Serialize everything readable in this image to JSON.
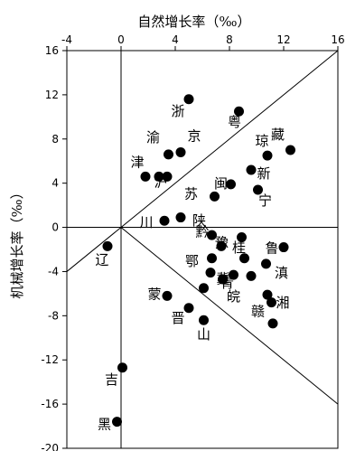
{
  "chart_data": {
    "type": "scatter",
    "xlabel": "自然增长率（‰）",
    "ylabel": "机械增长率（‰）",
    "xlim": [
      -4,
      16
    ],
    "ylim": [
      -20,
      16
    ],
    "xticks": [
      "-4",
      "0",
      "4",
      "8",
      "12",
      "16"
    ],
    "yticks": [
      "16",
      "12",
      "8",
      "4",
      "0",
      "-4",
      "-8",
      "-12",
      "-16",
      "-20"
    ],
    "x_axis_position": "top",
    "reference_lines": [
      {
        "kind": "axis",
        "desc": "x = 0"
      },
      {
        "kind": "axis",
        "desc": "y = 0"
      },
      {
        "kind": "diagonal",
        "from": [
          -4,
          -4
        ],
        "to": [
          16,
          16
        ]
      },
      {
        "kind": "diagonal",
        "from": [
          0,
          0
        ],
        "to": [
          16,
          -16
        ]
      }
    ],
    "points": [
      {
        "label": "浙",
        "x": 5.0,
        "y": 11.6
      },
      {
        "label": "粤",
        "x": 8.7,
        "y": 10.5
      },
      {
        "label": "藏",
        "x": 12.5,
        "y": 7.0
      },
      {
        "label": "渝",
        "x": 3.5,
        "y": 6.6
      },
      {
        "label": "京",
        "x": 4.4,
        "y": 6.8
      },
      {
        "label": "琼",
        "x": 10.8,
        "y": 6.5
      },
      {
        "label": "新",
        "x": 9.6,
        "y": 5.2
      },
      {
        "label": "津",
        "x": 1.8,
        "y": 4.6
      },
      {
        "label": "沪",
        "x": 2.8,
        "y": 4.6
      },
      {
        "label": "",
        "x": 3.4,
        "y": 4.6
      },
      {
        "label": "闽",
        "x": 8.1,
        "y": 3.9
      },
      {
        "label": "宁",
        "x": 10.1,
        "y": 3.4
      },
      {
        "label": "苏",
        "x": 6.9,
        "y": 2.8
      },
      {
        "label": "黔",
        "x": 4.4,
        "y": 0.9
      },
      {
        "label": "川",
        "x": 3.2,
        "y": 0.6
      },
      {
        "label": "陕",
        "x": 6.7,
        "y": -0.7
      },
      {
        "label": "豫",
        "x": 8.9,
        "y": -0.9
      },
      {
        "label": "鲁",
        "x": 12.0,
        "y": -1.8
      },
      {
        "label": "",
        "x": 7.4,
        "y": -1.7
      },
      {
        "label": "鄂",
        "x": 6.7,
        "y": -2.8
      },
      {
        "label": "桂",
        "x": 9.1,
        "y": -2.8
      },
      {
        "label": "滇",
        "x": 10.7,
        "y": -3.3
      },
      {
        "label": "辽",
        "x": -1.0,
        "y": -1.7
      },
      {
        "label": "冀",
        "x": 6.6,
        "y": -4.1
      },
      {
        "label": "青",
        "x": 8.3,
        "y": -4.3
      },
      {
        "label": "",
        "x": 9.6,
        "y": -4.4
      },
      {
        "label": "皖",
        "x": 7.5,
        "y": -4.7
      },
      {
        "label": "",
        "x": 6.1,
        "y": -5.5
      },
      {
        "label": "湘",
        "x": 10.8,
        "y": -6.1
      },
      {
        "label": "赣",
        "x": 11.1,
        "y": -6.8
      },
      {
        "label": "蒙",
        "x": 3.4,
        "y": -6.2
      },
      {
        "label": "晋",
        "x": 5.0,
        "y": -7.3
      },
      {
        "label": "山",
        "x": 6.1,
        "y": -8.4
      },
      {
        "label": "",
        "x": 11.2,
        "y": -8.7
      },
      {
        "label": "吉",
        "x": 0.1,
        "y": -12.7
      },
      {
        "label": "黑",
        "x": -0.3,
        "y": -17.6
      }
    ]
  }
}
